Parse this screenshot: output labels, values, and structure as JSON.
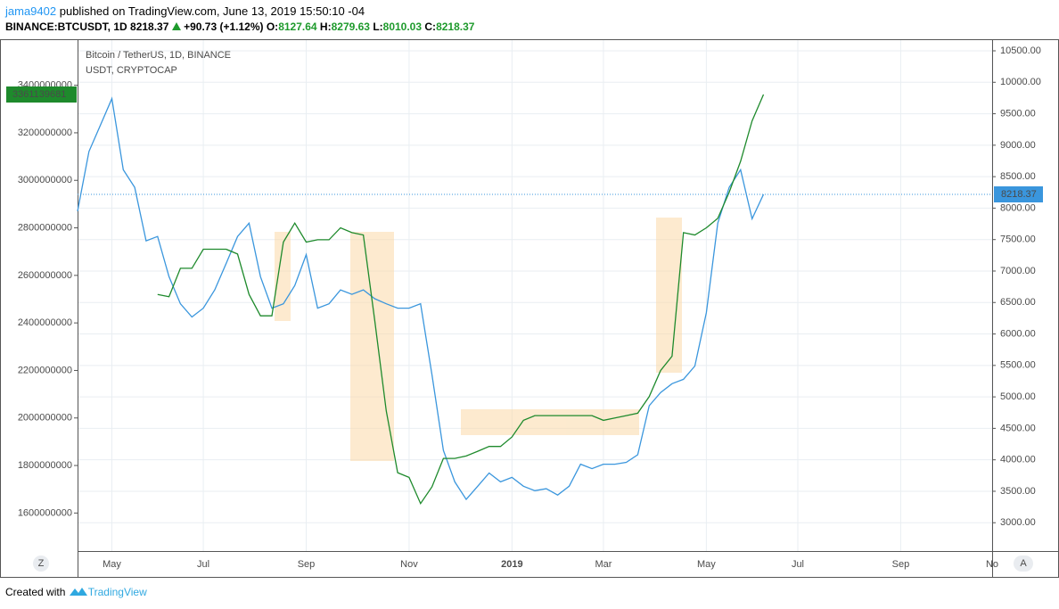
{
  "header": {
    "user": "jama9402",
    "published": "published on TradingView.com, June 13, 2019 15:50:10 -04",
    "symbol": "BINANCE:BTCUSDT, 1D",
    "last": "8218.37",
    "change": "+90.73 (+1.12%)",
    "open_label": "O:",
    "open": "8127.64",
    "high_label": "H:",
    "high": "8279.63",
    "low_label": "L:",
    "low": "8010.03",
    "close_label": "C:",
    "close": "8218.37"
  },
  "ui": {
    "zoom_button": "Z",
    "auto_button": "A"
  },
  "footer": {
    "created_with": "Created with",
    "brand": "TradingView"
  },
  "chart_data": {
    "type": "line",
    "grid": true,
    "categories": [
      null,
      null,
      null,
      "May",
      null,
      null,
      null,
      null,
      null,
      null,
      null,
      "Jul",
      null,
      null,
      null,
      null,
      null,
      null,
      null,
      null,
      "Sep",
      null,
      null,
      null,
      null,
      null,
      null,
      null,
      null,
      "Nov",
      null,
      null,
      null,
      null,
      null,
      null,
      null,
      null,
      "2019",
      null,
      null,
      null,
      null,
      null,
      null,
      null,
      "Mar",
      null,
      null,
      null,
      null,
      null,
      null,
      null,
      null,
      "May",
      null,
      null,
      null,
      null,
      null,
      null,
      null,
      "Jul",
      null,
      null,
      null,
      null,
      null,
      null,
      null,
      null,
      "Sep",
      null,
      null,
      null,
      null,
      null,
      null,
      null,
      "No"
    ],
    "series": [
      {
        "name": "Bitcoin / TetherUS, 1D, BINANCE",
        "color": "#3a96dd",
        "axis": "y2",
        "values": [
          7950,
          8900,
          9320,
          9740,
          8610,
          8330,
          7480,
          7550,
          6910,
          6480,
          6270,
          6410,
          6700,
          7120,
          7550,
          7760,
          6910,
          6410,
          6480,
          6770,
          7260,
          6410,
          6480,
          6700,
          6630,
          6700,
          6560,
          6480,
          6410,
          6410,
          6480,
          5350,
          4150,
          3650,
          3370,
          3580,
          3790,
          3650,
          3720,
          3580,
          3510,
          3540,
          3440,
          3580,
          3930,
          3860,
          3930,
          3930,
          3960,
          4080,
          4860,
          5070,
          5210,
          5280,
          5490,
          6340,
          7760,
          8330,
          8610,
          7830,
          8218.37,
          null,
          null,
          null,
          null,
          null,
          null,
          null,
          null,
          null,
          null,
          null,
          null,
          null,
          null,
          null,
          null,
          null,
          null,
          null,
          null
        ]
      },
      {
        "name": "USDT, CRYPTOCAP",
        "color": "#1e8a2c",
        "axis": "y",
        "values": [
          null,
          null,
          null,
          null,
          null,
          null,
          null,
          2520000000,
          2510000000,
          2630000000,
          2630000000,
          2710000000,
          2710000000,
          2710000000,
          2690000000,
          2520000000,
          2430000000,
          2430000000,
          2740000000,
          2820000000,
          2740000000,
          2750000000,
          2750000000,
          2800000000,
          2780000000,
          2770000000,
          2410000000,
          2030000000,
          1770000000,
          1750000000,
          1640000000,
          1710000000,
          1830000000,
          1830000000,
          1840000000,
          1860000000,
          1880000000,
          1880000000,
          1920000000,
          1990000000,
          2010000000,
          2010000000,
          2010000000,
          2010000000,
          2010000000,
          2010000000,
          1990000000,
          2000000000,
          2010000000,
          2020000000,
          2090000000,
          2200000000,
          2260000000,
          2780000000,
          2770000000,
          2800000000,
          2840000000,
          2950000000,
          3080000000,
          3250000000,
          3361139681,
          null,
          null,
          null,
          null,
          null,
          null,
          null,
          null,
          null,
          null,
          null,
          null,
          null,
          null,
          null,
          null,
          null,
          null,
          null,
          null
        ]
      }
    ],
    "ylim": [
      1440000000,
      3590000000
    ],
    "yticks": [
      1600000000,
      1800000000,
      2000000000,
      2200000000,
      2400000000,
      2600000000,
      2800000000,
      3000000000,
      3200000000,
      3400000000
    ],
    "y2lim": [
      2550,
      10670
    ],
    "y2ticks": [
      {
        "value": 3000,
        "label": "3000.00"
      },
      {
        "value": 3500,
        "label": "3500.00"
      },
      {
        "value": 4000,
        "label": "4000.00"
      },
      {
        "value": 4500,
        "label": "4500.00"
      },
      {
        "value": 5000,
        "label": "5000.00"
      },
      {
        "value": 5500,
        "label": "5500.00"
      },
      {
        "value": 6000,
        "label": "6000.00"
      },
      {
        "value": 6500,
        "label": "6500.00"
      },
      {
        "value": 7000,
        "label": "7000.00"
      },
      {
        "value": 7500,
        "label": "7500.00"
      },
      {
        "value": 8000,
        "label": "8000.00"
      },
      {
        "value": 8500,
        "label": "8500.00"
      },
      {
        "value": 9000,
        "label": "9000.00"
      },
      {
        "value": 9500,
        "label": "9500.00"
      },
      {
        "value": 10000,
        "label": "10000.00"
      },
      {
        "value": 10500,
        "label": "10500.00"
      }
    ]
  }
}
